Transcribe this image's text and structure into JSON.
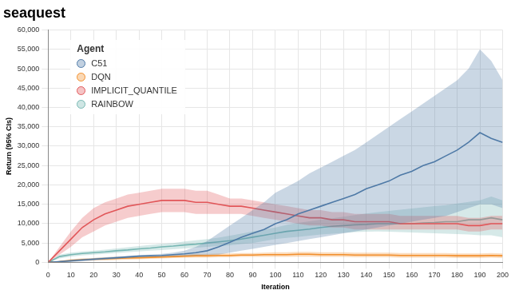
{
  "chart_data": {
    "type": "line",
    "title": "seaquest",
    "x_label": "Iteration",
    "y_label": "Return (95% CIs)",
    "legend_title": "Agent",
    "legend": "upper left",
    "grid": true,
    "xlim": [
      0,
      200
    ],
    "xticks": [
      0,
      10,
      20,
      30,
      40,
      50,
      60,
      70,
      80,
      90,
      100,
      110,
      120,
      130,
      140,
      150,
      160,
      170,
      180,
      190,
      200
    ],
    "ylim": [
      0,
      60000
    ],
    "yticks": [
      0,
      {
        "value": 5000,
        "label": "5,000"
      },
      {
        "value": 10000,
        "label": "10,000"
      },
      {
        "value": 15000,
        "label": "15,000"
      },
      {
        "value": 20000,
        "label": "20,000"
      },
      {
        "value": 25000,
        "label": "25,000"
      },
      {
        "value": 30000,
        "label": "30,000"
      },
      {
        "value": 35000,
        "label": "35,000"
      },
      {
        "value": 40000,
        "label": "40,000"
      },
      {
        "value": 45000,
        "label": "45,000"
      },
      {
        "value": 50000,
        "label": "50,000"
      },
      {
        "value": 55000,
        "label": "55,000"
      },
      {
        "value": 60000,
        "label": "60,000"
      }
    ],
    "x": [
      0,
      5,
      10,
      15,
      20,
      25,
      30,
      35,
      40,
      45,
      50,
      55,
      60,
      65,
      70,
      75,
      80,
      85,
      90,
      95,
      100,
      105,
      110,
      115,
      120,
      125,
      130,
      135,
      140,
      145,
      150,
      155,
      160,
      165,
      170,
      175,
      180,
      185,
      190,
      195,
      200
    ],
    "series": [
      {
        "name": "C51",
        "color": "#4e79a7",
        "values": [
          0,
          200,
          400,
          600,
          800,
          1000,
          1200,
          1400,
          1600,
          1700,
          1800,
          2000,
          2200,
          2500,
          3000,
          4000,
          5200,
          6500,
          7500,
          8500,
          10000,
          11000,
          12500,
          13500,
          14500,
          15500,
          16500,
          17500,
          19000,
          20000,
          21000,
          22500,
          23500,
          25000,
          26000,
          27500,
          29000,
          31000,
          33500,
          32000,
          31000
        ],
        "lower": [
          0,
          0,
          100,
          300,
          500,
          700,
          900,
          1100,
          1300,
          1400,
          1500,
          1600,
          1700,
          1800,
          1900,
          2000,
          2500,
          3000,
          3500,
          4000,
          4500,
          5000,
          5500,
          6000,
          6500,
          7000,
          7500,
          8000,
          8500,
          9000,
          9500,
          10000,
          10500,
          11000,
          11500,
          12000,
          13000,
          14000,
          15000,
          15000,
          14000
        ],
        "upper": [
          0,
          400,
          700,
          900,
          1100,
          1300,
          1500,
          1700,
          1900,
          2000,
          2200,
          2500,
          3000,
          4000,
          5500,
          7500,
          9500,
          11500,
          13500,
          15500,
          18000,
          19500,
          21000,
          23000,
          24500,
          26000,
          27500,
          29000,
          31000,
          33000,
          35000,
          37000,
          39000,
          41000,
          43000,
          45000,
          47000,
          50000,
          55000,
          52000,
          47000
        ]
      },
      {
        "name": "DQN",
        "color": "#f28e2b",
        "values": [
          0,
          200,
          500,
          700,
          800,
          900,
          1000,
          1100,
          1200,
          1300,
          1400,
          1500,
          1600,
          1700,
          1700,
          1800,
          1800,
          1900,
          1900,
          2000,
          2000,
          2000,
          2100,
          2100,
          2000,
          2000,
          2000,
          1900,
          1900,
          1900,
          1900,
          1800,
          1800,
          1800,
          1800,
          1800,
          1700,
          1700,
          1700,
          1800,
          1700
        ],
        "lower": [
          0,
          0,
          200,
          400,
          500,
          500,
          600,
          700,
          800,
          900,
          1000,
          1100,
          1200,
          1200,
          1200,
          1300,
          1300,
          1400,
          1400,
          1400,
          1400,
          1400,
          1500,
          1500,
          1400,
          1400,
          1400,
          1300,
          1300,
          1300,
          1300,
          1200,
          1200,
          1200,
          1200,
          1200,
          1100,
          1100,
          1100,
          1200,
          1100
        ],
        "upper": [
          0,
          400,
          800,
          1000,
          1100,
          1300,
          1400,
          1500,
          1600,
          1700,
          1800,
          1900,
          2000,
          2200,
          2200,
          2300,
          2300,
          2400,
          2400,
          2500,
          2600,
          2600,
          2700,
          2700,
          2600,
          2600,
          2600,
          2500,
          2500,
          2500,
          2500,
          2400,
          2400,
          2400,
          2400,
          2400,
          2300,
          2300,
          2300,
          2400,
          2300
        ]
      },
      {
        "name": "IMPLICIT_QUANTILE",
        "color": "#e15759",
        "values": [
          0,
          3000,
          6000,
          9000,
          11000,
          12500,
          13500,
          14500,
          15000,
          15500,
          16000,
          16000,
          16000,
          15500,
          15500,
          15000,
          14500,
          14500,
          14000,
          13500,
          13000,
          12500,
          12000,
          11500,
          11500,
          11000,
          11000,
          10500,
          10500,
          10500,
          10500,
          10000,
          10000,
          10000,
          10000,
          10000,
          10000,
          9500,
          9500,
          10000,
          10000
        ],
        "lower": [
          0,
          2000,
          4000,
          6500,
          8000,
          9500,
          10500,
          11500,
          12000,
          12500,
          13000,
          13000,
          13000,
          12500,
          12500,
          12500,
          12500,
          12500,
          12000,
          11500,
          11000,
          10500,
          10000,
          9500,
          9500,
          9000,
          9000,
          8500,
          8500,
          8500,
          8500,
          8500,
          8500,
          8500,
          8500,
          8500,
          8500,
          8000,
          8000,
          8500,
          8500
        ],
        "upper": [
          0,
          4000,
          8000,
          11500,
          14000,
          15500,
          16500,
          17500,
          18000,
          18500,
          19000,
          19000,
          19000,
          18500,
          18500,
          17500,
          16500,
          16500,
          16000,
          15500,
          15000,
          14500,
          14000,
          13500,
          13500,
          13000,
          13000,
          12500,
          12500,
          12500,
          12500,
          12000,
          12000,
          12000,
          12000,
          12000,
          12000,
          11500,
          11500,
          12000,
          12000
        ]
      },
      {
        "name": "RAINBOW",
        "color": "#76b7b2",
        "values": [
          0,
          1500,
          2000,
          2300,
          2500,
          2700,
          3000,
          3200,
          3500,
          3700,
          4000,
          4200,
          4500,
          4700,
          5000,
          5300,
          5600,
          6000,
          6500,
          7000,
          7500,
          8000,
          8300,
          8600,
          9000,
          9300,
          9500,
          9700,
          9800,
          10000,
          10000,
          10000,
          10000,
          10200,
          10300,
          10500,
          10500,
          11000,
          11000,
          11500,
          11000
        ],
        "lower": [
          0,
          1000,
          1500,
          1800,
          2000,
          2200,
          2400,
          2600,
          2800,
          3000,
          3200,
          3400,
          3600,
          3800,
          4000,
          4200,
          4400,
          4700,
          5000,
          5500,
          6000,
          6300,
          6600,
          6900,
          7200,
          7400,
          7600,
          7800,
          7900,
          8000,
          7900,
          7800,
          7700,
          7600,
          7500,
          7400,
          7300,
          7200,
          7000,
          7000,
          6500
        ],
        "upper": [
          0,
          2000,
          2500,
          2800,
          3000,
          3300,
          3600,
          3900,
          4200,
          4500,
          4800,
          5000,
          5400,
          5700,
          6000,
          6400,
          6900,
          7400,
          8000,
          8500,
          9000,
          9700,
          10200,
          10600,
          11000,
          11400,
          11800,
          12200,
          12600,
          13000,
          13300,
          13600,
          13900,
          14200,
          14500,
          14800,
          15200,
          15600,
          16000,
          17000,
          16000
        ]
      }
    ]
  }
}
